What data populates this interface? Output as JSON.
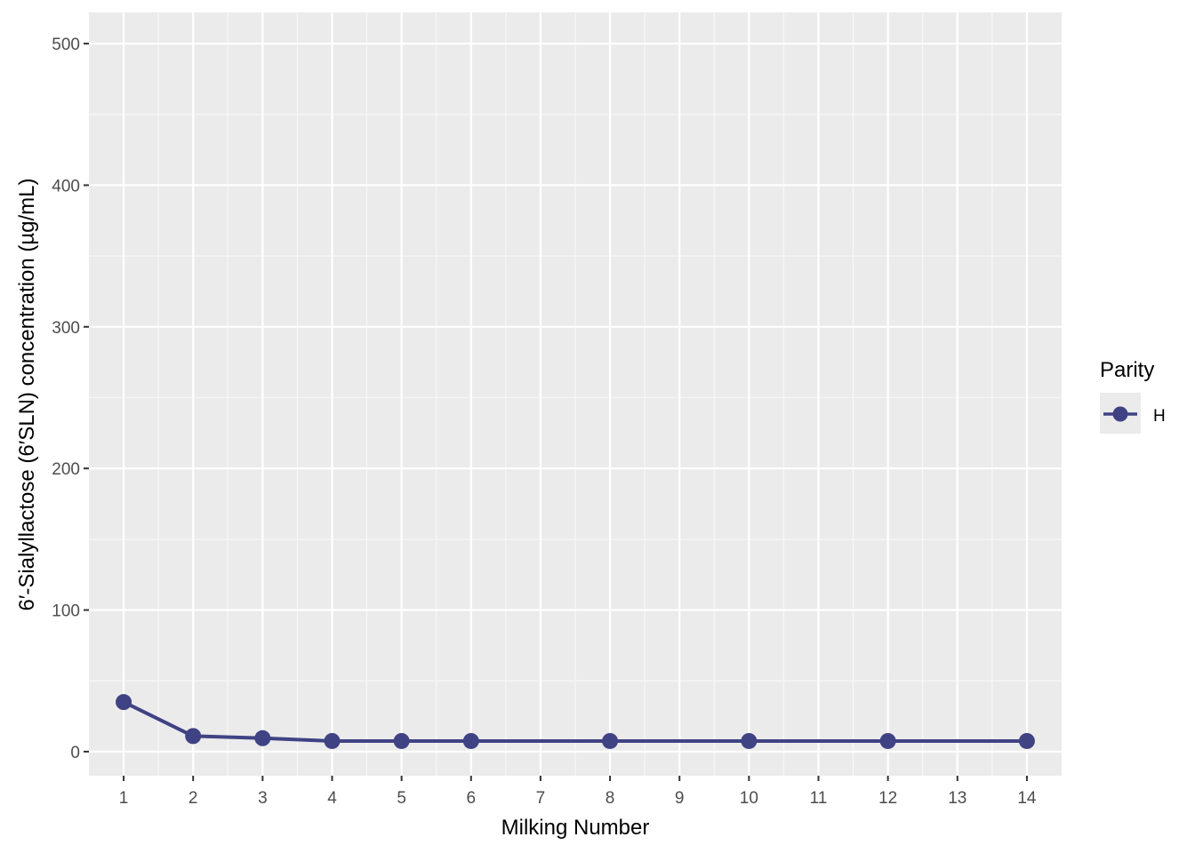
{
  "chart_data": {
    "type": "line",
    "title": "",
    "xlabel": "Milking Number",
    "ylabel": "6′-Sialyllactose (6′SLN) concentration (µg/mL)",
    "x_ticks": [
      1,
      2,
      3,
      4,
      5,
      6,
      7,
      8,
      9,
      10,
      11,
      12,
      13,
      14
    ],
    "y_ticks": [
      0,
      100,
      200,
      300,
      400,
      500
    ],
    "xlim": [
      0.5,
      14.5
    ],
    "ylim": [
      -17,
      522
    ],
    "grid": true,
    "legend": {
      "title": "Parity",
      "position": "right"
    },
    "series": [
      {
        "name": "H",
        "color": "#3f4283",
        "x": [
          1,
          2,
          3,
          4,
          5,
          6,
          8,
          10,
          12,
          14
        ],
        "y": [
          35,
          11,
          9.5,
          7.5,
          7.5,
          7.5,
          7.5,
          7.5,
          7.5,
          7.5
        ]
      }
    ]
  }
}
